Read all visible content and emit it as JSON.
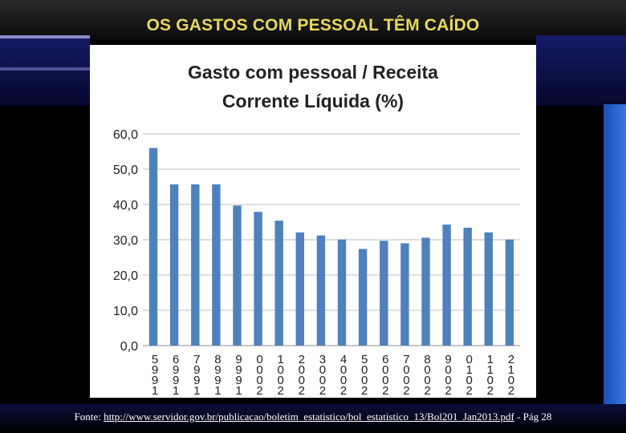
{
  "slide": {
    "title": "OS GASTOS COM PESSOAL TÊM CAÍDO"
  },
  "footer": {
    "prefix": "Fonte:",
    "link_text": "http://www.servidor.gov.br/publicacao/boletim_estatistico/bol_estatistico_13/Bol201_Jan2013.pdf",
    "suffix": "- Pág 28"
  },
  "colors": {
    "bar": "#4f81bd",
    "title_text": "#e8d85a",
    "slide_background": "#000000"
  },
  "chart_data": {
    "type": "bar",
    "title_lines": [
      "Gasto com pessoal / Receita",
      "Corrente Líquida (%)"
    ],
    "categories": [
      "1995",
      "1996",
      "1997",
      "1998",
      "1999",
      "2000",
      "2001",
      "2002",
      "2003",
      "2004",
      "2005",
      "2006",
      "2007",
      "2008",
      "2009",
      "2010",
      "2011",
      "2012"
    ],
    "category_labels": [
      "5 9 9 1",
      "6 9 9 1",
      "7 9 9 1",
      "8 9 9 1",
      "9 9 9 1",
      "0 0 0 2",
      "1 0 0 2",
      "2 0 0 2",
      "3 0 0 2",
      "4 0 0 2",
      "5 0 0 2",
      "6 0 0 2",
      "7 0 0 2",
      "8 0 0 2",
      "9 0 0 2",
      "0 1 0 2",
      "1 1 0 2",
      "2 1 0 2"
    ],
    "values": [
      56.0,
      45.7,
      45.7,
      45.7,
      39.7,
      37.9,
      35.4,
      32.1,
      31.2,
      30.1,
      27.4,
      29.7,
      29.0,
      30.6,
      34.3,
      33.4,
      32.1,
      30.1
    ],
    "ylim": [
      0,
      60
    ],
    "yticks": [
      "0,0",
      "10,0",
      "20,0",
      "30,0",
      "40,0",
      "50,0",
      "60,0"
    ],
    "grid": true,
    "legend": "none"
  }
}
